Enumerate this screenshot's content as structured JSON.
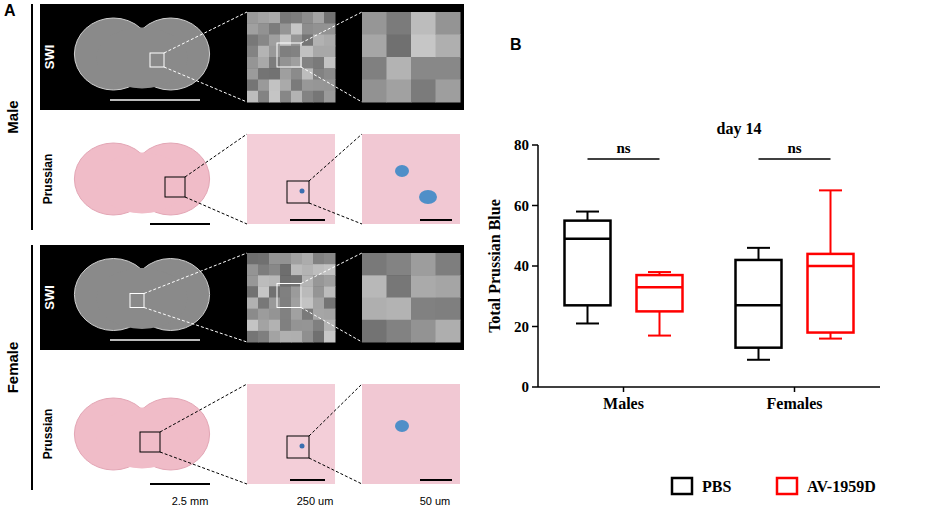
{
  "panel_a": {
    "label": "A",
    "groups": [
      {
        "label": "Male",
        "rows": [
          "SWI",
          "Prussian"
        ]
      },
      {
        "label": "Female",
        "rows": [
          "SWI",
          "Prussian"
        ]
      }
    ],
    "scale_bars": [
      "2.5 mm",
      "250 um",
      "50 um"
    ]
  },
  "chart_data": {
    "type": "box",
    "panel_label": "B",
    "title": "day 14",
    "y_label": "Total Prussian Blue",
    "categories": [
      "Males",
      "Females"
    ],
    "series": [
      {
        "name": "PBS",
        "color": "#000000",
        "min": [
          21,
          9
        ],
        "q1": [
          27,
          13
        ],
        "median": [
          49,
          27
        ],
        "q3": [
          55,
          42
        ],
        "max": [
          58,
          46
        ]
      },
      {
        "name": "AV-1959D",
        "color": "#ff0000",
        "min": [
          17,
          16
        ],
        "q1": [
          25,
          18
        ],
        "median": [
          33,
          40
        ],
        "q3": [
          37,
          44
        ],
        "max": [
          38,
          65
        ]
      }
    ],
    "annotations": [
      "ns",
      "ns"
    ],
    "ylim": [
      0,
      80
    ],
    "yticks": [
      0,
      20,
      40,
      60,
      80
    ],
    "legend": "bottom"
  }
}
